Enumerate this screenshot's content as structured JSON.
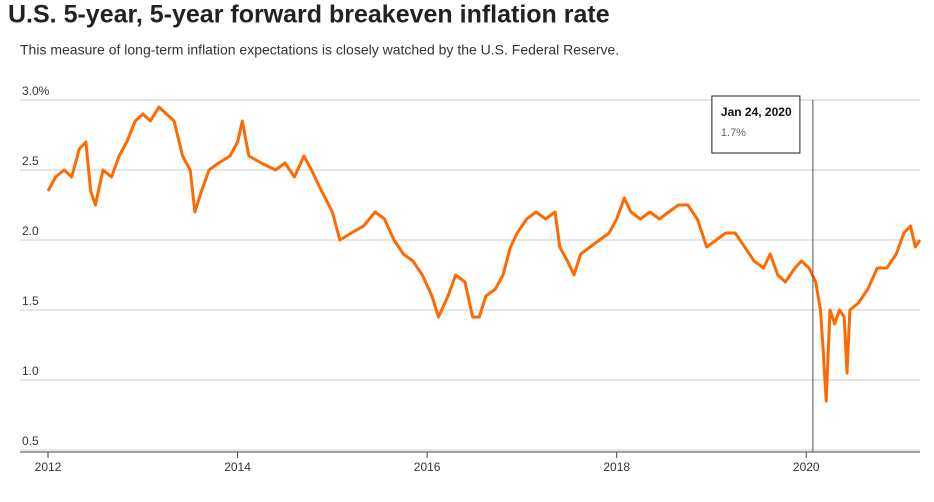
{
  "chart_data": {
    "type": "line",
    "title": "U.S. 5-year, 5-year forward breakeven inflation rate",
    "subtitle": "This measure of long-term inflation expectations is closely watched by the U.S. Federal Reserve.",
    "color": "#ff6a00",
    "x": [
      2012.0,
      2012.08,
      2012.17,
      2012.25,
      2012.33,
      2012.4,
      2012.45,
      2012.5,
      2012.58,
      2012.67,
      2012.75,
      2012.83,
      2012.92,
      2013.0,
      2013.08,
      2013.17,
      2013.25,
      2013.33,
      2013.42,
      2013.5,
      2013.55,
      2013.62,
      2013.7,
      2013.8,
      2013.92,
      2014.0,
      2014.05,
      2014.12,
      2014.25,
      2014.4,
      2014.5,
      2014.6,
      2014.7,
      2014.78,
      2014.85,
      2015.0,
      2015.08,
      2015.2,
      2015.33,
      2015.45,
      2015.55,
      2015.65,
      2015.75,
      2015.85,
      2015.95,
      2016.05,
      2016.12,
      2016.22,
      2016.3,
      2016.4,
      2016.48,
      2016.55,
      2016.62,
      2016.72,
      2016.8,
      2016.88,
      2016.95,
      2017.05,
      2017.15,
      2017.25,
      2017.35,
      2017.4,
      2017.48,
      2017.55,
      2017.62,
      2017.72,
      2017.82,
      2017.92,
      2018.0,
      2018.08,
      2018.15,
      2018.25,
      2018.35,
      2018.45,
      2018.55,
      2018.65,
      2018.75,
      2018.85,
      2018.95,
      2019.05,
      2019.15,
      2019.25,
      2019.35,
      2019.45,
      2019.55,
      2019.62,
      2019.7,
      2019.78,
      2019.88,
      2019.95,
      2020.03,
      2020.1,
      2020.15,
      2020.18,
      2020.21,
      2020.25,
      2020.3,
      2020.35,
      2020.4,
      2020.43,
      2020.46,
      2020.55,
      2020.65,
      2020.75,
      2020.85,
      2020.95,
      2021.03,
      2021.1,
      2021.15,
      2021.2
    ],
    "values": [
      2.35,
      2.45,
      2.5,
      2.45,
      2.65,
      2.7,
      2.35,
      2.25,
      2.5,
      2.45,
      2.6,
      2.7,
      2.85,
      2.9,
      2.85,
      2.95,
      2.9,
      2.85,
      2.6,
      2.5,
      2.2,
      2.35,
      2.5,
      2.55,
      2.6,
      2.7,
      2.85,
      2.6,
      2.55,
      2.5,
      2.55,
      2.45,
      2.6,
      2.5,
      2.4,
      2.2,
      2.0,
      2.05,
      2.1,
      2.2,
      2.15,
      2.0,
      1.9,
      1.85,
      1.75,
      1.6,
      1.45,
      1.6,
      1.75,
      1.7,
      1.45,
      1.45,
      1.6,
      1.65,
      1.75,
      1.95,
      2.05,
      2.15,
      2.2,
      2.15,
      2.2,
      1.95,
      1.85,
      1.75,
      1.9,
      1.95,
      2.0,
      2.05,
      2.15,
      2.3,
      2.2,
      2.15,
      2.2,
      2.15,
      2.2,
      2.25,
      2.25,
      2.15,
      1.95,
      2.0,
      2.05,
      2.05,
      1.95,
      1.85,
      1.8,
      1.9,
      1.75,
      1.7,
      1.8,
      1.85,
      1.8,
      1.7,
      1.5,
      1.2,
      0.85,
      1.5,
      1.4,
      1.5,
      1.45,
      1.05,
      1.5,
      1.55,
      1.65,
      1.8,
      1.8,
      1.9,
      2.05,
      2.1,
      1.95,
      2.0
    ],
    "xlim": [
      2012,
      2021.2
    ],
    "xticks": [
      2012,
      2014,
      2016,
      2018,
      2020
    ],
    "ylim": [
      0.5,
      3.0
    ],
    "yticks": [
      {
        "value": 3.0,
        "label": "3.0%"
      },
      2.5,
      {
        "value": 2.0,
        "label": "2.0"
      },
      1.5,
      {
        "value": 1.0,
        "label": "1.0"
      },
      0.5
    ],
    "grid": true,
    "annotation": {
      "x": 2020.07,
      "label": "Jan 24, 2020",
      "value": 1.7,
      "value_label": "1.7%"
    }
  }
}
